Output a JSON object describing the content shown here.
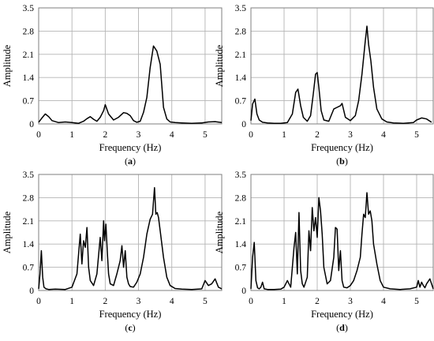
{
  "chart_data": [
    {
      "type": "line",
      "caption_letter": "a",
      "xlabel": "Frequency (Hz)",
      "ylabel": "Amplitude",
      "xlim": [
        0,
        5.5
      ],
      "ylim": [
        0,
        3.5
      ],
      "xticks": [
        0,
        1,
        2,
        3,
        4,
        5
      ],
      "yticks": [
        "0",
        "0.7",
        "1.4",
        "2.1",
        "2.8",
        "3.5"
      ],
      "grid": true,
      "series": [
        {
          "color": "#000000",
          "x": [
            0,
            0.1,
            0.2,
            0.3,
            0.4,
            0.6,
            0.8,
            1.0,
            1.2,
            1.35,
            1.45,
            1.55,
            1.65,
            1.75,
            1.85,
            1.95,
            2.0,
            2.1,
            2.25,
            2.4,
            2.55,
            2.65,
            2.75,
            2.85,
            2.95,
            3.05,
            3.15,
            3.25,
            3.35,
            3.45,
            3.55,
            3.65,
            3.75,
            3.85,
            3.95,
            4.1,
            4.3,
            4.6,
            4.9,
            5.1,
            5.3,
            5.5
          ],
          "y": [
            0.05,
            0.18,
            0.3,
            0.22,
            0.1,
            0.04,
            0.06,
            0.04,
            0.02,
            0.08,
            0.16,
            0.22,
            0.14,
            0.08,
            0.2,
            0.4,
            0.58,
            0.3,
            0.12,
            0.2,
            0.34,
            0.32,
            0.25,
            0.1,
            0.05,
            0.08,
            0.35,
            0.8,
            1.7,
            2.35,
            2.2,
            1.8,
            0.5,
            0.15,
            0.06,
            0.04,
            0.03,
            0.02,
            0.03,
            0.06,
            0.07,
            0.04
          ]
        }
      ]
    },
    {
      "type": "line",
      "caption_letter": "b",
      "xlabel": "Frequency (Hz)",
      "ylabel": "Amplitude",
      "xlim": [
        0,
        5.5
      ],
      "ylim": [
        0,
        3.5
      ],
      "xticks": [
        0,
        1,
        2,
        3,
        4,
        5
      ],
      "yticks": [
        "0",
        "0.7",
        "1.4",
        "2.1",
        "2.8",
        "3.5"
      ],
      "grid": true,
      "series": [
        {
          "color": "#000000",
          "x": [
            0,
            0.05,
            0.12,
            0.18,
            0.25,
            0.35,
            0.5,
            0.7,
            0.9,
            1.1,
            1.25,
            1.35,
            1.42,
            1.5,
            1.58,
            1.7,
            1.8,
            1.88,
            1.95,
            2.0,
            2.05,
            2.12,
            2.2,
            2.35,
            2.5,
            2.6,
            2.7,
            2.75,
            2.85,
            3.0,
            3.15,
            3.25,
            3.35,
            3.45,
            3.5,
            3.55,
            3.62,
            3.7,
            3.8,
            3.95,
            4.1,
            4.3,
            4.6,
            4.9,
            5.0,
            5.15,
            5.3,
            5.45
          ],
          "y": [
            0.1,
            0.6,
            0.75,
            0.3,
            0.12,
            0.05,
            0.03,
            0.02,
            0.02,
            0.04,
            0.3,
            0.95,
            1.05,
            0.55,
            0.2,
            0.08,
            0.25,
            0.9,
            1.5,
            1.55,
            1.1,
            0.4,
            0.12,
            0.08,
            0.45,
            0.5,
            0.55,
            0.62,
            0.2,
            0.1,
            0.25,
            0.7,
            1.5,
            2.5,
            2.95,
            2.4,
            1.9,
            1.1,
            0.45,
            0.15,
            0.06,
            0.03,
            0.02,
            0.04,
            0.12,
            0.18,
            0.15,
            0.05
          ]
        }
      ]
    },
    {
      "type": "line",
      "caption_letter": "c",
      "xlabel": "Frequency (Hz)",
      "ylabel": "Amplitude",
      "xlim": [
        0,
        5.5
      ],
      "ylim": [
        0,
        3.5
      ],
      "xticks": [
        0,
        1,
        2,
        3,
        4,
        5
      ],
      "yticks": [
        "0",
        "0.7",
        "1.4",
        "2.1",
        "2.8",
        "3.5"
      ],
      "grid": true,
      "series": [
        {
          "color": "#000000",
          "x": [
            0,
            0.04,
            0.08,
            0.12,
            0.16,
            0.22,
            0.3,
            0.5,
            0.8,
            1.0,
            1.15,
            1.25,
            1.3,
            1.35,
            1.4,
            1.45,
            1.5,
            1.55,
            1.65,
            1.75,
            1.85,
            1.9,
            1.95,
            1.98,
            2.02,
            2.06,
            2.1,
            2.15,
            2.25,
            2.35,
            2.45,
            2.5,
            2.55,
            2.6,
            2.65,
            2.7,
            2.75,
            2.85,
            2.95,
            3.05,
            3.15,
            3.25,
            3.35,
            3.42,
            3.48,
            3.52,
            3.56,
            3.6,
            3.65,
            3.75,
            3.85,
            3.95,
            4.1,
            4.3,
            4.6,
            4.9,
            5.0,
            5.1,
            5.2,
            5.3,
            5.4,
            5.5
          ],
          "y": [
            0.05,
            0.5,
            1.2,
            0.4,
            0.1,
            0.05,
            0.03,
            0.04,
            0.03,
            0.1,
            0.5,
            1.7,
            0.8,
            1.5,
            1.3,
            1.9,
            0.7,
            0.3,
            0.15,
            0.5,
            1.6,
            0.9,
            2.1,
            1.5,
            2.0,
            1.2,
            0.5,
            0.2,
            0.15,
            0.5,
            0.9,
            1.35,
            0.7,
            1.2,
            0.4,
            0.2,
            0.12,
            0.1,
            0.25,
            0.5,
            1.0,
            1.7,
            2.15,
            2.3,
            3.1,
            2.3,
            2.35,
            2.2,
            1.8,
            1.0,
            0.4,
            0.15,
            0.06,
            0.04,
            0.03,
            0.05,
            0.3,
            0.15,
            0.2,
            0.35,
            0.1,
            0.05
          ]
        }
      ]
    },
    {
      "type": "line",
      "caption_letter": "d",
      "xlabel": "Frequency (Hz)",
      "ylabel": "Amplitude",
      "xlim": [
        0,
        5.5
      ],
      "ylim": [
        0,
        3.5
      ],
      "xticks": [
        0,
        1,
        2,
        3,
        4,
        5
      ],
      "yticks": [
        "0",
        "0.7",
        "1.4",
        "2.1",
        "2.8",
        "3.5"
      ],
      "grid": true,
      "series": [
        {
          "color": "#000000",
          "x": [
            0,
            0.05,
            0.1,
            0.15,
            0.2,
            0.25,
            0.3,
            0.35,
            0.4,
            0.5,
            0.7,
            0.9,
            1.0,
            1.1,
            1.2,
            1.3,
            1.35,
            1.4,
            1.45,
            1.5,
            1.55,
            1.6,
            1.7,
            1.75,
            1.8,
            1.85,
            1.9,
            1.95,
            2.0,
            2.05,
            2.1,
            2.15,
            2.2,
            2.3,
            2.4,
            2.5,
            2.55,
            2.6,
            2.65,
            2.7,
            2.75,
            2.8,
            2.9,
            3.0,
            3.1,
            3.2,
            3.3,
            3.35,
            3.4,
            3.45,
            3.5,
            3.55,
            3.6,
            3.65,
            3.7,
            3.8,
            3.9,
            4.0,
            4.2,
            4.5,
            4.8,
            5.0,
            5.05,
            5.1,
            5.15,
            5.2,
            5.25,
            5.3,
            5.4,
            5.5
          ],
          "y": [
            0.05,
            1.0,
            1.45,
            0.3,
            0.08,
            0.05,
            0.1,
            0.25,
            0.05,
            0.03,
            0.03,
            0.04,
            0.1,
            0.3,
            0.1,
            1.3,
            1.75,
            0.5,
            2.35,
            0.6,
            0.2,
            0.1,
            0.4,
            1.8,
            1.2,
            2.5,
            1.8,
            2.2,
            1.6,
            2.8,
            2.4,
            1.7,
            0.7,
            0.2,
            0.3,
            1.0,
            1.9,
            1.85,
            0.6,
            1.2,
            0.3,
            0.1,
            0.08,
            0.15,
            0.3,
            0.6,
            1.0,
            1.7,
            2.3,
            2.2,
            2.95,
            2.3,
            2.4,
            2.1,
            1.4,
            0.8,
            0.3,
            0.1,
            0.05,
            0.03,
            0.05,
            0.1,
            0.3,
            0.1,
            0.25,
            0.15,
            0.08,
            0.2,
            0.35,
            0.05
          ]
        }
      ]
    }
  ]
}
